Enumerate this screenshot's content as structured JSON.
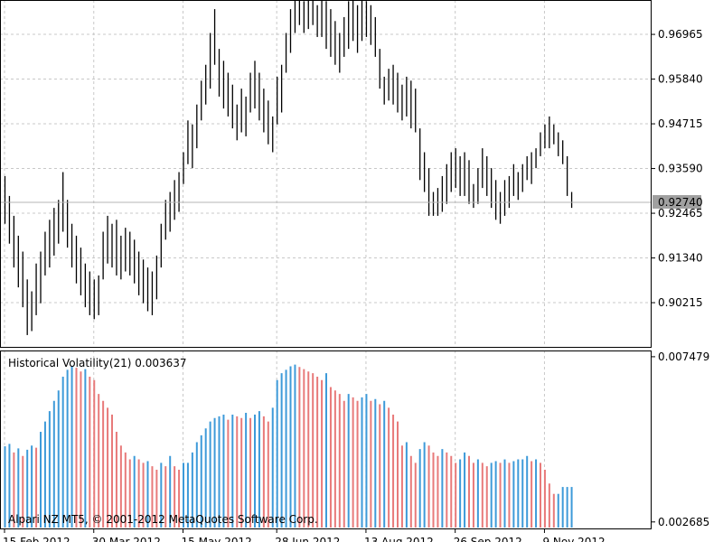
{
  "chart_data": [
    {
      "type": "ohlc",
      "color": "#000000",
      "ylim": [
        0.8908,
        0.9783
      ],
      "yticks": [
        0.96965,
        {
          "value": 0.9584,
          "label": "0.95840"
        },
        0.94715,
        {
          "value": 0.9359,
          "label": "0.93590"
        },
        0.92465,
        {
          "value": 0.9134,
          "label": "0.91340"
        },
        0.90215
      ],
      "grid": true,
      "last_price": {
        "value": 0.9274,
        "label": "0.92740"
      },
      "high": [
        0.934,
        0.929,
        0.924,
        0.919,
        0.915,
        0.908,
        0.905,
        0.912,
        0.915,
        0.92,
        0.923,
        0.926,
        0.928,
        0.935,
        0.928,
        0.922,
        0.919,
        0.916,
        0.912,
        0.91,
        0.908,
        0.909,
        0.92,
        0.924,
        0.922,
        0.923,
        0.919,
        0.921,
        0.92,
        0.918,
        0.915,
        0.913,
        0.911,
        0.91,
        0.914,
        0.922,
        0.928,
        0.93,
        0.933,
        0.935,
        0.94,
        0.948,
        0.947,
        0.952,
        0.958,
        0.962,
        0.97,
        0.976,
        0.966,
        0.963,
        0.96,
        0.957,
        0.952,
        0.956,
        0.954,
        0.96,
        0.963,
        0.96,
        0.956,
        0.953,
        0.949,
        0.959,
        0.962,
        0.97,
        0.976,
        0.979,
        0.979,
        0.978,
        0.979,
        0.979,
        0.977,
        0.979,
        0.978,
        0.976,
        0.973,
        0.97,
        0.974,
        0.978,
        0.979,
        0.977,
        0.979,
        0.978,
        0.977,
        0.974,
        0.966,
        0.959,
        0.961,
        0.962,
        0.96,
        0.957,
        0.959,
        0.958,
        0.956,
        0.946,
        0.94,
        0.936,
        0.93,
        0.931,
        0.934,
        0.937,
        0.94,
        0.941,
        0.939,
        0.94,
        0.938,
        0.932,
        0.936,
        0.941,
        0.939,
        0.936,
        0.933,
        0.93,
        0.933,
        0.934,
        0.937,
        0.935,
        0.937,
        0.939,
        0.94,
        0.941,
        0.945,
        0.947,
        0.949,
        0.947,
        0.945,
        0.943,
        0.939,
        0.93
      ],
      "low": [
        0.922,
        0.917,
        0.911,
        0.906,
        0.901,
        0.894,
        0.895,
        0.899,
        0.902,
        0.909,
        0.911,
        0.914,
        0.917,
        0.92,
        0.916,
        0.911,
        0.907,
        0.904,
        0.901,
        0.899,
        0.898,
        0.899,
        0.908,
        0.912,
        0.911,
        0.909,
        0.908,
        0.91,
        0.909,
        0.907,
        0.904,
        0.902,
        0.9,
        0.899,
        0.903,
        0.911,
        0.918,
        0.92,
        0.923,
        0.925,
        0.932,
        0.937,
        0.936,
        0.941,
        0.948,
        0.952,
        0.956,
        0.962,
        0.954,
        0.951,
        0.949,
        0.946,
        0.943,
        0.945,
        0.944,
        0.95,
        0.951,
        0.948,
        0.945,
        0.942,
        0.94,
        0.947,
        0.95,
        0.96,
        0.965,
        0.97,
        0.972,
        0.97,
        0.971,
        0.972,
        0.969,
        0.969,
        0.966,
        0.964,
        0.962,
        0.96,
        0.964,
        0.966,
        0.968,
        0.965,
        0.968,
        0.969,
        0.967,
        0.964,
        0.956,
        0.952,
        0.953,
        0.952,
        0.95,
        0.948,
        0.949,
        0.946,
        0.945,
        0.933,
        0.93,
        0.924,
        0.924,
        0.924,
        0.925,
        0.927,
        0.93,
        0.931,
        0.929,
        0.929,
        0.927,
        0.926,
        0.927,
        0.931,
        0.929,
        0.926,
        0.923,
        0.922,
        0.924,
        0.926,
        0.929,
        0.928,
        0.93,
        0.933,
        0.932,
        0.936,
        0.939,
        0.941,
        0.941,
        0.942,
        0.939,
        0.937,
        0.929,
        0.926
      ]
    },
    {
      "type": "histogram",
      "title": "Historical Volatility(21) 0.003637",
      "watermark": "Alpari NZ MT5, © 2001-2012 MetaQuotes Software Corp.",
      "up_color": "#3d9ad9",
      "down_color": "#e87a7a",
      "ylim": [
        0.00247,
        0.00766
      ],
      "yticks": [
        0.007479,
        0.002685
      ],
      "xlim": [
        0,
        128
      ],
      "xticks": [
        {
          "value": 0,
          "label": "15 Feb 2012"
        },
        {
          "value": 20,
          "label": "30 Mar 2012"
        },
        {
          "value": 40,
          "label": "15 May 2012"
        },
        {
          "value": 61,
          "label": "28 Jun 2012"
        },
        {
          "value": 81,
          "label": "13 Aug 2012"
        },
        {
          "value": 101,
          "label": "26 Sep 2012"
        },
        {
          "value": 121,
          "label": "9 Nov 2012"
        }
      ],
      "values": [
        0.00488,
        0.00495,
        0.0047,
        0.00482,
        0.0046,
        0.00478,
        0.0049,
        0.00484,
        0.0053,
        0.0056,
        0.0059,
        0.0062,
        0.0065,
        0.0069,
        0.0071,
        0.0072,
        0.00716,
        0.00705,
        0.00712,
        0.0069,
        0.0068,
        0.0064,
        0.0062,
        0.006,
        0.0058,
        0.0053,
        0.0049,
        0.0047,
        0.0045,
        0.0046,
        0.0045,
        0.0044,
        0.00445,
        0.0043,
        0.0042,
        0.0044,
        0.0043,
        0.0046,
        0.0043,
        0.0042,
        0.0044,
        0.0044,
        0.0047,
        0.005,
        0.0052,
        0.0054,
        0.0056,
        0.0057,
        0.00575,
        0.0058,
        0.00565,
        0.0058,
        0.00575,
        0.0057,
        0.00585,
        0.0057,
        0.0058,
        0.0059,
        0.00575,
        0.0056,
        0.006,
        0.0068,
        0.007,
        0.0071,
        0.0072,
        0.00725,
        0.00718,
        0.00712,
        0.00705,
        0.007,
        0.0069,
        0.0068,
        0.007,
        0.0066,
        0.0065,
        0.0064,
        0.0062,
        0.0064,
        0.0063,
        0.0062,
        0.0063,
        0.0064,
        0.0062,
        0.00625,
        0.0061,
        0.0062,
        0.006,
        0.0058,
        0.0056,
        0.0049,
        0.005,
        0.0046,
        0.0044,
        0.0048,
        0.005,
        0.0049,
        0.0047,
        0.0046,
        0.0048,
        0.0047,
        0.0046,
        0.0044,
        0.0045,
        0.0047,
        0.0046,
        0.0044,
        0.0045,
        0.0044,
        0.0043,
        0.0044,
        0.00445,
        0.0044,
        0.0045,
        0.0044,
        0.00445,
        0.0045,
        0.0045,
        0.0046,
        0.00445,
        0.0045,
        0.0044,
        0.0042,
        0.0038,
        0.0035,
        0.0035,
        0.0037,
        0.0037,
        0.0037
      ]
    }
  ]
}
